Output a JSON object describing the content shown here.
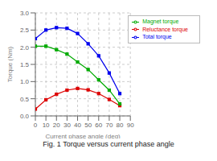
{
  "chart_data": {
    "type": "line",
    "title": "Fig. 1 Torque versus current phase angle",
    "xlabel": "Current phase angle (deg)",
    "ylabel": "Torque (Nm)",
    "x": [
      0,
      10,
      20,
      30,
      40,
      50,
      60,
      70,
      80
    ],
    "series": [
      {
        "name": "Total torque",
        "color": "#0000ee",
        "values": [
          2.25,
          2.5,
          2.57,
          2.55,
          2.4,
          2.1,
          1.75,
          1.25,
          0.65
        ]
      },
      {
        "name": "Reluctance torque",
        "color": "#dd0000",
        "values": [
          0.2,
          0.47,
          0.63,
          0.75,
          0.8,
          0.76,
          0.65,
          0.48,
          0.3
        ]
      },
      {
        "name": "Magnet torque",
        "color": "#00aa00",
        "values": [
          2.03,
          2.03,
          1.93,
          1.8,
          1.57,
          1.35,
          1.05,
          0.75,
          0.35
        ]
      }
    ],
    "xlim": [
      0,
      90
    ],
    "ylim": [
      0.0,
      3.0
    ],
    "xticks": [
      0,
      10,
      20,
      30,
      40,
      50,
      60,
      70,
      80,
      90
    ],
    "yticks": [
      {
        "value": 0.0,
        "label": "0.0"
      },
      {
        "value": 0.5,
        "label": "0.5"
      },
      {
        "value": 1.0,
        "label": "1.0"
      },
      {
        "value": 1.5,
        "label": "1.5"
      },
      {
        "value": 2.0,
        "label": "2.0"
      },
      {
        "value": 2.5,
        "label": "2.5"
      },
      {
        "value": 3.0,
        "label": "3.0"
      }
    ],
    "grid": true,
    "legend": "upper right",
    "marker": "square"
  }
}
